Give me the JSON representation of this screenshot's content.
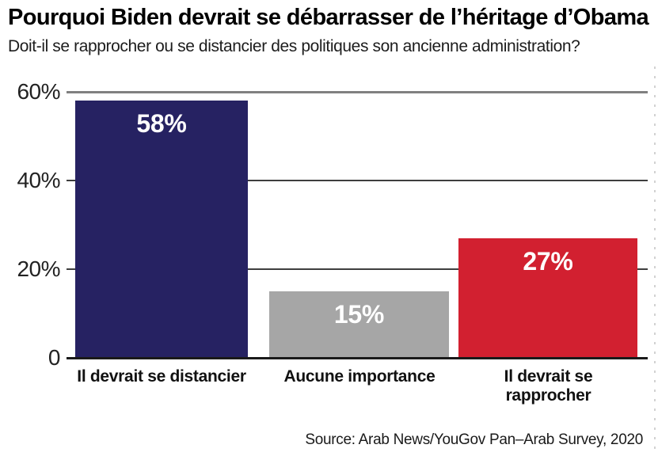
{
  "chart_data": {
    "type": "bar",
    "title": "Pourquoi Biden devrait se débarrasser de l’héritage d’Obama",
    "subtitle": "Doit-il se rapprocher ou se distancier des politiques son ancienne administration?",
    "source": "Source: Arab News/YouGov Pan–Arab Survey, 2020",
    "categories": [
      "Il devrait se distancier",
      "Aucune importance",
      "Il devrait se rapprocher"
    ],
    "values": [
      58,
      15,
      27
    ],
    "value_labels": [
      "58%",
      "15%",
      "27%"
    ],
    "bar_colors": [
      "#262262",
      "#a6a6a6",
      "#d22030"
    ],
    "xlabel": "",
    "ylabel": "",
    "ylim": [
      0,
      60
    ],
    "yticks": [
      {
        "value": 60,
        "label": "60%"
      },
      {
        "value": 40,
        "label": "40%"
      },
      {
        "value": 20,
        "label": "20%"
      },
      {
        "value": 0,
        "label": "0"
      }
    ],
    "grid": "horizontal",
    "legend": false,
    "colors": {
      "top_gridline": "#808080",
      "inner_gridline": "#3e3e3e",
      "axis_line": "#1a1a1a",
      "value_label_text": "#ffffff"
    }
  }
}
